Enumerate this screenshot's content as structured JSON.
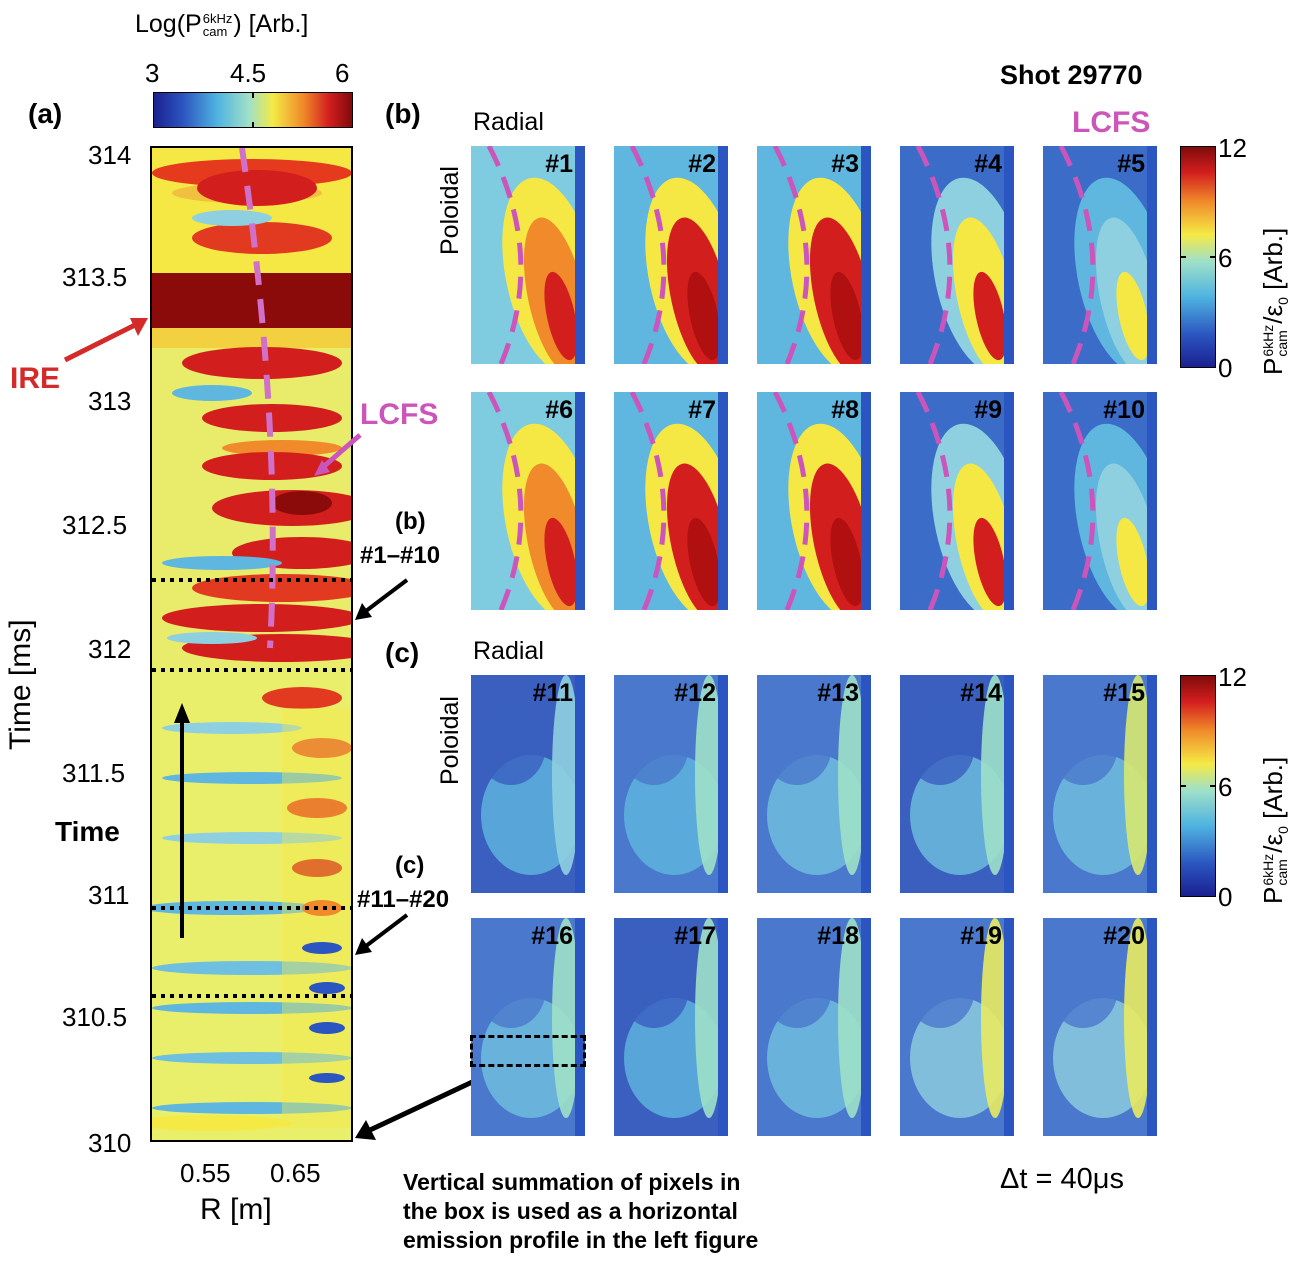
{
  "shot_label": "Shot 29770",
  "panel_a": {
    "label": "(a)",
    "colorbar": {
      "title": "Log(P_cam^6kHz) [Arb.]",
      "title_main": "Log(P",
      "title_sup": "6kHz",
      "title_sub": "cam",
      "title_end": ") [Arb.]",
      "ticks": [
        "3",
        "4.5",
        "6"
      ]
    },
    "y_axis_label": "Time [ms]",
    "y_ticks": [
      "314",
      "313.5",
      "313",
      "312.5",
      "312",
      "311.5",
      "311",
      "310.5",
      "310"
    ],
    "x_axis_label": "R [m]",
    "x_ticks": [
      "0.55",
      "0.65"
    ],
    "annotations": {
      "ire": "IRE",
      "lcfs": "LCFS",
      "time": "Time",
      "b_ref": "(b)",
      "b_range": "#1–#10",
      "c_ref": "(c)",
      "c_range": "#11–#20"
    }
  },
  "panel_b": {
    "label": "(b)",
    "radial": "Radial",
    "poloidal": "Poloidal",
    "lcfs": "LCFS",
    "frames": [
      "#1",
      "#2",
      "#3",
      "#4",
      "#5",
      "#6",
      "#7",
      "#8",
      "#9",
      "#10"
    ]
  },
  "panel_c": {
    "label": "(c)",
    "radial": "Radial",
    "poloidal": "Poloidal",
    "frames": [
      "#11",
      "#12",
      "#13",
      "#14",
      "#15",
      "#16",
      "#17",
      "#18",
      "#19",
      "#20"
    ]
  },
  "colorbar_right": {
    "ticks": [
      "12",
      "6",
      "0"
    ],
    "label_main": "P",
    "label_sup": "6kHz",
    "label_sub": "cam",
    "label_end": "/ε",
    "label_eps_sub": "0",
    "label_unit": "[Arb.]"
  },
  "delta_t": "Δt = 40μs",
  "caption": [
    "Vertical summation of pixels in",
    "the box is used as a horizontal",
    "emission profile in the left figure"
  ],
  "colors": {
    "lcfs": "#cc55bb",
    "ire": "#d42a2a",
    "dark_red": "#8b0a0a",
    "red": "#d7191c",
    "yellow": "#f2e84a",
    "cyan": "#66c6e0",
    "blue": "#2b4fa8"
  }
}
